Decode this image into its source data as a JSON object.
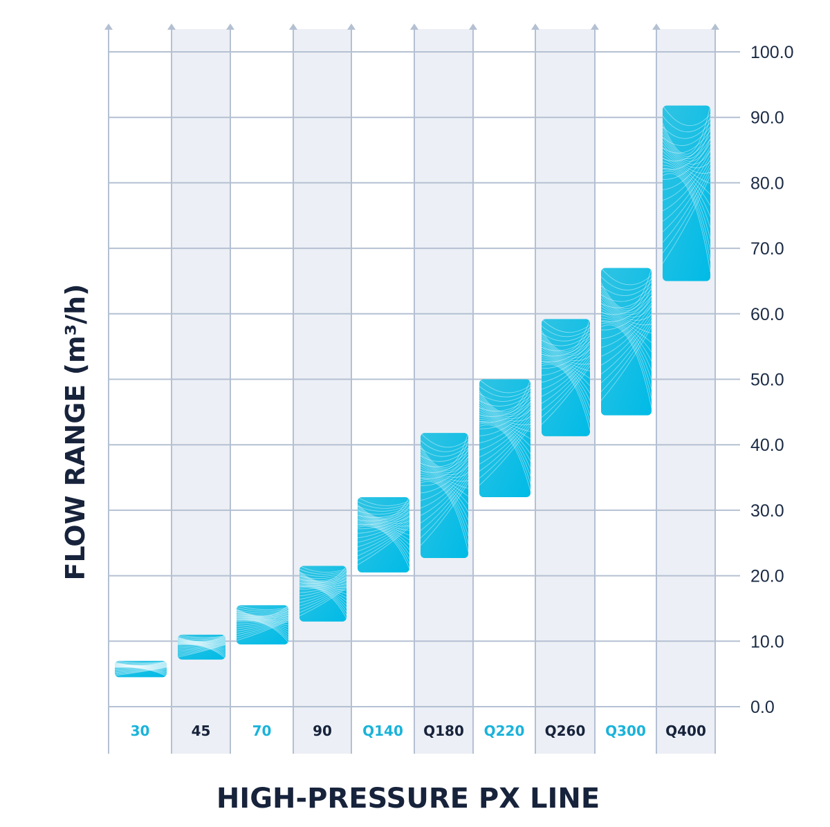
{
  "chart_data": {
    "type": "bar",
    "subtype": "floating-range",
    "xlabel": "HIGH-PRESSURE PX LINE",
    "ylabel": "FLOW RANGE (m³/h)",
    "ylim": [
      0,
      100
    ],
    "yticks": [
      "0.0",
      "10.0",
      "20.0",
      "30.0",
      "40.0",
      "50.0",
      "60.0",
      "70.0",
      "80.0",
      "90.0",
      "100.0"
    ],
    "ytick_values": [
      0,
      10,
      20,
      30,
      40,
      50,
      60,
      70,
      80,
      90,
      100
    ],
    "grid": true,
    "categories": [
      "30",
      "45",
      "70",
      "90",
      "Q140",
      "Q180",
      "Q220",
      "Q260",
      "Q300",
      "Q400"
    ],
    "series": [
      {
        "low": [
          4.5,
          7.2,
          9.5,
          13.0,
          20.5,
          22.7,
          32.0,
          41.3,
          44.5,
          65.0
        ],
        "high": [
          7.0,
          11.0,
          15.5,
          21.5,
          32.0,
          41.8,
          50.0,
          59.2,
          67.0,
          91.8
        ]
      }
    ],
    "label_colors": [
      "#1ab3da",
      "#17233b",
      "#1ab3da",
      "#17233b",
      "#1ab3da",
      "#17233b",
      "#1ab3da",
      "#17233b",
      "#1ab3da",
      "#17233b"
    ],
    "bar_color": "#22bde0",
    "bar_color_dark": "#00bde8",
    "band_color": "#eceff5",
    "grid_color": "#b4c0d2"
  }
}
